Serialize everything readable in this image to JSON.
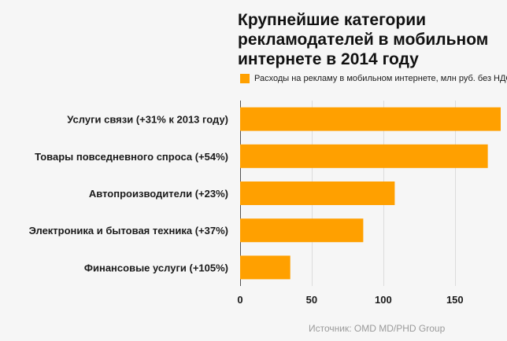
{
  "chart_data": {
    "type": "bar",
    "orientation": "horizontal",
    "title": "Крупнейшие категории рекламодателей в мобильном интернете в 2014 году",
    "categories": [
      "Услуги связи (+31% к 2013 году)",
      "Товары повседневного спроса (+54%)",
      "Автопроизводители (+23%)",
      "Электроника и бытовая техника (+37%)",
      "Финансовые услуги (+105%)"
    ],
    "series": [
      {
        "name": "Расходы на рекламу в мобильном интернете, млн руб. без НДС",
        "values": [
          182,
          173,
          108,
          86,
          35
        ]
      }
    ],
    "xlim": [
      0,
      182
    ],
    "xticks": [
      0,
      50,
      100,
      150
    ],
    "xlabel": "",
    "ylabel": "",
    "grid": true,
    "legend": "top",
    "colors": {
      "bar": "#ffa000",
      "grid": "#dcdcdc",
      "background": "#f6f6f6"
    }
  },
  "source": "Источник: OMD MD/PHD Group"
}
